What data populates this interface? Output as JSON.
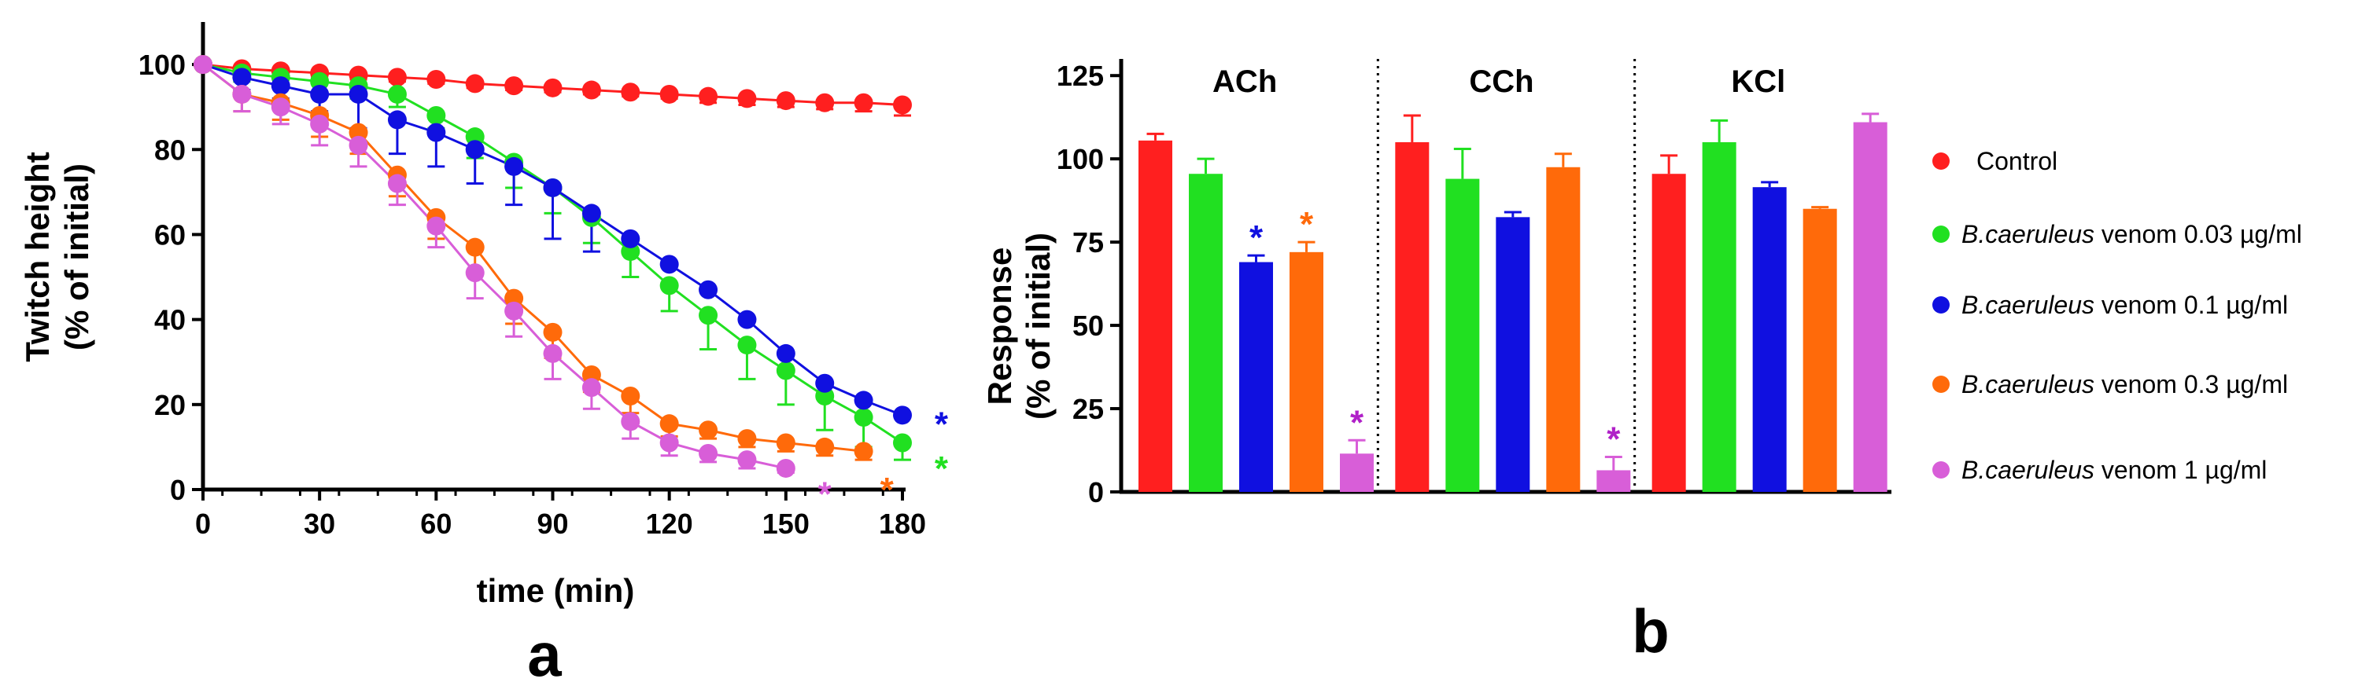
{
  "panel_a": {
    "label": "a",
    "chart_data": {
      "type": "line",
      "xlabel": "time (min)",
      "ylabel_line1": "Twitch height",
      "ylabel_line2": "(% of initial)",
      "xlim": [
        0,
        180
      ],
      "ylim": [
        0,
        110
      ],
      "xticks": [
        "0",
        "30",
        "60",
        "90",
        "120",
        "150",
        "180"
      ],
      "yticks": [
        "0",
        "20",
        "40",
        "60",
        "80",
        "100"
      ],
      "series": [
        {
          "name": "Control",
          "color": "#ff1f1f",
          "x": [
            0,
            10,
            20,
            30,
            40,
            50,
            60,
            70,
            80,
            90,
            100,
            110,
            120,
            130,
            140,
            150,
            160,
            170,
            180
          ],
          "y": [
            100,
            99,
            98.5,
            98,
            97.5,
            97,
            96.5,
            95.5,
            95,
            94.5,
            94,
            93.5,
            93,
            92.5,
            92,
            91.5,
            91,
            91,
            90.5
          ],
          "err": [
            0,
            1,
            1,
            1,
            1,
            1,
            1,
            1,
            1,
            1,
            1,
            1,
            1,
            1.5,
            1.5,
            1.5,
            1.5,
            2,
            2.5
          ]
        },
        {
          "name": "B.caeruleus venom 0.03 µg/ml",
          "color": "#21e021",
          "x": [
            0,
            10,
            20,
            30,
            40,
            50,
            60,
            70,
            80,
            90,
            100,
            110,
            120,
            130,
            140,
            150,
            160,
            170,
            180
          ],
          "y": [
            100,
            98,
            97,
            96,
            95,
            93,
            88,
            83,
            77,
            71,
            64,
            56,
            48,
            41,
            34,
            28,
            22,
            17,
            11
          ],
          "err": [
            0,
            2,
            2,
            3,
            3,
            3,
            3,
            5,
            6,
            6,
            6,
            6,
            6,
            8,
            8,
            8,
            8,
            7,
            4
          ]
        },
        {
          "name": "B.caeruleus venom 0.1 µg/ml",
          "color": "#1010e0",
          "x": [
            0,
            10,
            20,
            30,
            40,
            50,
            60,
            70,
            80,
            90,
            100,
            110,
            120,
            130,
            140,
            150,
            160,
            170,
            180
          ],
          "y": [
            100,
            97,
            95,
            93,
            93,
            87,
            84,
            80,
            76,
            71,
            65,
            59,
            53,
            47,
            40,
            32,
            25,
            21,
            17.5
          ],
          "err": [
            0,
            3,
            3,
            4,
            8,
            8,
            8,
            8,
            9,
            12,
            9,
            0,
            0,
            0,
            0,
            0,
            0,
            0,
            0
          ]
        },
        {
          "name": "B.caeruleus venom 0.3 µg/ml",
          "color": "#ff6a0a",
          "x": [
            0,
            10,
            20,
            30,
            40,
            50,
            60,
            70,
            80,
            90,
            100,
            110,
            120,
            130,
            140,
            150,
            160,
            170
          ],
          "y": [
            100,
            93,
            91,
            88,
            84,
            74,
            64,
            57,
            45,
            37,
            27,
            22,
            15.5,
            14,
            12,
            11,
            10,
            9
          ],
          "err": [
            0,
            4,
            4,
            5,
            5,
            5,
            5,
            6,
            6,
            6,
            4,
            4,
            3,
            2,
            2,
            2,
            2,
            2
          ]
        },
        {
          "name": "B.caeruleus venom 1 µg/ml",
          "color": "#d85ed8",
          "x": [
            0,
            10,
            20,
            30,
            40,
            50,
            60,
            70,
            80,
            90,
            100,
            110,
            120,
            130,
            140,
            150
          ],
          "y": [
            100,
            93,
            90,
            86,
            81,
            72,
            62,
            51,
            42,
            32,
            24,
            16,
            11,
            8.5,
            7,
            5
          ],
          "err": [
            0,
            4,
            4,
            5,
            5,
            5,
            5,
            6,
            6,
            6,
            5,
            4,
            3,
            2,
            2,
            1
          ]
        }
      ],
      "significance": [
        {
          "text": "*",
          "color": "#1010e0",
          "x": 190,
          "y": 17.5
        },
        {
          "text": "*",
          "color": "#21e021",
          "x": 190,
          "y": 7
        },
        {
          "text": "*",
          "color": "#ff6a0a",
          "x": 176,
          "y": 2
        },
        {
          "text": "*",
          "color": "#d85ed8",
          "x": 160,
          "y": 1
        }
      ]
    }
  },
  "panel_b": {
    "label": "b",
    "chart_data": {
      "type": "bar",
      "ylabel_line1": "Response",
      "ylabel_line2": "(% of initial)",
      "ylim": [
        0,
        130
      ],
      "yticks": [
        "0",
        "25",
        "50",
        "75",
        "100",
        "125"
      ],
      "groups": [
        "ACh",
        "CCh",
        "KCl"
      ],
      "series": [
        {
          "name": "Control",
          "color": "#ff1f1f",
          "values": [
            105.5,
            105,
            95.5
          ],
          "err": [
            2,
            8,
            5.5
          ]
        },
        {
          "name": "B.caeruleus venom 0.03 µg/ml",
          "color": "#21e021",
          "values": [
            95.5,
            94,
            105
          ],
          "err": [
            4.5,
            9,
            6.5
          ]
        },
        {
          "name": "B.caeruleus venom 0.1 µg/ml",
          "color": "#1010e0",
          "values": [
            69,
            82.5,
            91.5
          ],
          "err": [
            2,
            1.5,
            1.5
          ]
        },
        {
          "name": "B.caeruleus venom 0.3 µg/ml",
          "color": "#ff6a0a",
          "values": [
            72,
            97.5,
            85
          ],
          "err": [
            3,
            4,
            0.5
          ]
        },
        {
          "name": "B.caeruleus venom 1 µg/ml",
          "color": "#d85ed8",
          "values": [
            11.5,
            6.5,
            111
          ],
          "err": [
            4,
            4,
            2.5
          ]
        }
      ],
      "significance": [
        {
          "text": "*",
          "group": 0,
          "series": 2,
          "color": "#1010e0"
        },
        {
          "text": "*",
          "group": 0,
          "series": 3,
          "color": "#ff6a0a"
        },
        {
          "text": "*",
          "group": 0,
          "series": 4,
          "color": "#b020c8"
        },
        {
          "text": "*",
          "group": 1,
          "series": 4,
          "color": "#b020c8"
        }
      ]
    }
  },
  "legend": [
    {
      "italic": "",
      "rest": "Control",
      "color": "#ff1f1f"
    },
    {
      "italic": "B.caeruleus",
      "rest": " venom 0.03 µg/ml",
      "color": "#21e021"
    },
    {
      "italic": "B.caeruleus",
      "rest": " venom 0.1 µg/ml",
      "color": "#1010e0"
    },
    {
      "italic": "B.caeruleus",
      "rest": " venom 0.3 µg/ml",
      "color": "#ff6a0a"
    },
    {
      "italic": "B.caeruleus",
      "rest": " venom 1 µg/ml",
      "color": "#d85ed8"
    }
  ]
}
